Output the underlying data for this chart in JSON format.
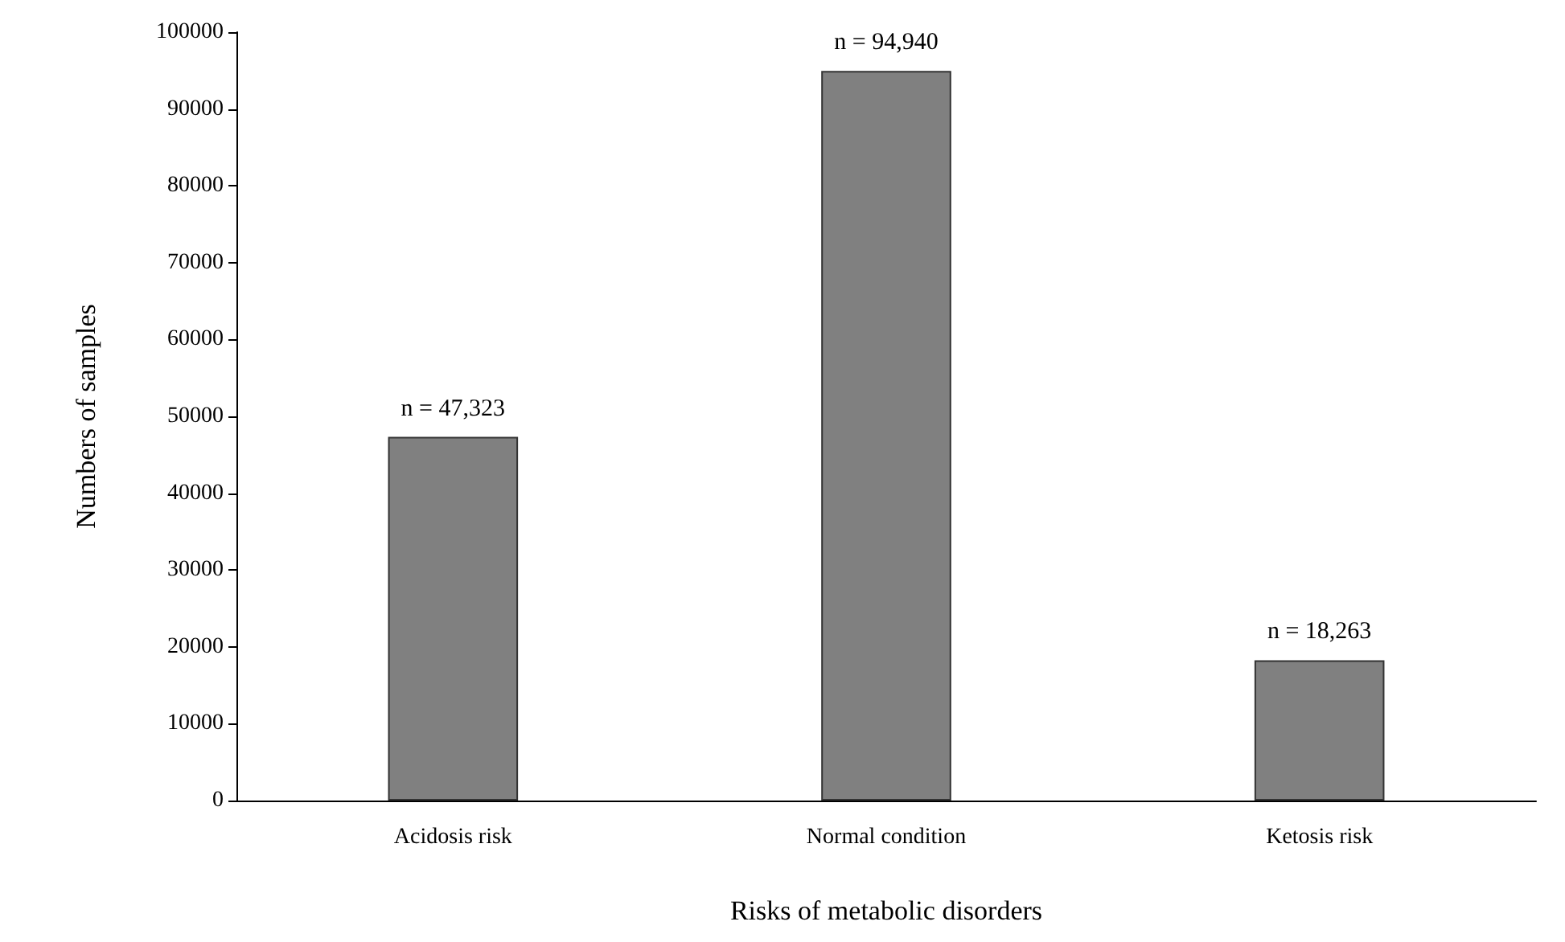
{
  "chart_data": {
    "type": "bar",
    "xlabel": "Risks of metabolic disorders",
    "ylabel": "Numbers of samples",
    "categories": [
      "Acidosis risk",
      "Normal condition",
      "Ketosis risk"
    ],
    "values": [
      47323,
      94940,
      18263
    ],
    "color": "#808080",
    "value_labels": [
      "n = 47,323",
      "n = 94,940",
      "n = 18,263"
    ],
    "ylim": [
      0,
      100000
    ],
    "yticks": [
      0,
      10000,
      20000,
      30000,
      40000,
      50000,
      60000,
      70000,
      80000,
      90000,
      100000
    ],
    "grid": false
  }
}
